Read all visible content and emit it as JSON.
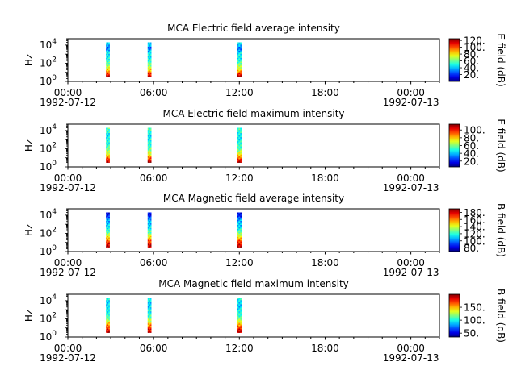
{
  "chart_data": [
    {
      "type": "heatmap",
      "title": "MCA  Electric field average intensity",
      "ylabel": "Hz",
      "yscale": "log",
      "ylim": [
        1,
        50000
      ],
      "y_ticks": [
        {
          "base": "10",
          "exp": "0"
        },
        {
          "base": "10",
          "exp": "2"
        },
        {
          "base": "10",
          "exp": "4"
        }
      ],
      "xlim": [
        "1992-07-12 00:00",
        "1992-07-13 02:00"
      ],
      "x_ticks": [
        "00:00",
        "06:00",
        "12:00",
        "18:00",
        "00:00"
      ],
      "x_tick_dates": [
        "1992-07-12",
        "",
        "",
        "",
        "1992-07-13"
      ],
      "colorbar": {
        "label": "E field (dB)",
        "range": [
          0,
          125
        ],
        "ticks": [
          "20.",
          "40.",
          "60.",
          "80.",
          "100.",
          "120."
        ],
        "colormap": "jet"
      },
      "data_segments": [
        {
          "start": "1992-07-12 02:40",
          "end": "1992-07-12 02:55",
          "freq_min": 3,
          "freq_max": 20000
        },
        {
          "start": "1992-07-12 05:35",
          "end": "1992-07-12 05:50",
          "freq_min": 3,
          "freq_max": 20000
        },
        {
          "start": "1992-07-12 11:50",
          "end": "1992-07-12 12:10",
          "freq_min": 3,
          "freq_max": 20000
        }
      ]
    },
    {
      "type": "heatmap",
      "title": "MCA  Electric field maximum intensity",
      "ylabel": "Hz",
      "yscale": "log",
      "ylim": [
        1,
        50000
      ],
      "y_ticks": [
        {
          "base": "10",
          "exp": "0"
        },
        {
          "base": "10",
          "exp": "2"
        },
        {
          "base": "10",
          "exp": "4"
        }
      ],
      "xlim": [
        "1992-07-12 00:00",
        "1992-07-13 02:00"
      ],
      "x_ticks": [
        "00:00",
        "06:00",
        "12:00",
        "18:00",
        "00:00"
      ],
      "x_tick_dates": [
        "1992-07-12",
        "",
        "",
        "",
        "1992-07-13"
      ],
      "colorbar": {
        "label": "E field (dB)",
        "range": [
          5,
          115
        ],
        "ticks": [
          "20.",
          "40.",
          "60.",
          "80.",
          "100."
        ],
        "colormap": "jet"
      },
      "data_segments": [
        {
          "start": "1992-07-12 02:40",
          "end": "1992-07-12 02:55",
          "freq_min": 3,
          "freq_max": 20000
        },
        {
          "start": "1992-07-12 05:35",
          "end": "1992-07-12 05:50",
          "freq_min": 3,
          "freq_max": 20000
        },
        {
          "start": "1992-07-12 11:50",
          "end": "1992-07-12 12:10",
          "freq_min": 3,
          "freq_max": 20000
        }
      ]
    },
    {
      "type": "heatmap",
      "title": "MCA  Magnetic field average intensity",
      "ylabel": "Hz",
      "yscale": "log",
      "ylim": [
        1,
        50000
      ],
      "y_ticks": [
        {
          "base": "10",
          "exp": "0"
        },
        {
          "base": "10",
          "exp": "2"
        },
        {
          "base": "10",
          "exp": "4"
        }
      ],
      "xlim": [
        "1992-07-12 00:00",
        "1992-07-13 02:00"
      ],
      "x_ticks": [
        "00:00",
        "06:00",
        "12:00",
        "18:00",
        "00:00"
      ],
      "x_tick_dates": [
        "1992-07-12",
        "",
        "",
        "",
        "1992-07-13"
      ],
      "colorbar": {
        "label": "B field (dB)",
        "range": [
          70,
          190
        ],
        "ticks": [
          "80.",
          "100.",
          "120.",
          "140.",
          "160.",
          "180."
        ],
        "colormap": "jet"
      },
      "data_segments": [
        {
          "start": "1992-07-12 02:40",
          "end": "1992-07-12 02:55",
          "freq_min": 3,
          "freq_max": 20000
        },
        {
          "start": "1992-07-12 05:35",
          "end": "1992-07-12 05:50",
          "freq_min": 3,
          "freq_max": 20000
        },
        {
          "start": "1992-07-12 11:50",
          "end": "1992-07-12 12:10",
          "freq_min": 3,
          "freq_max": 20000
        }
      ]
    },
    {
      "type": "heatmap",
      "title": "MCA  Magnetic field maximum intensity",
      "ylabel": "Hz",
      "yscale": "log",
      "ylim": [
        1,
        50000
      ],
      "y_ticks": [
        {
          "base": "10",
          "exp": "0"
        },
        {
          "base": "10",
          "exp": "2"
        },
        {
          "base": "10",
          "exp": "4"
        }
      ],
      "xlim": [
        "1992-07-12 00:00",
        "1992-07-13 02:00"
      ],
      "x_ticks": [
        "00:00",
        "06:00",
        "12:00",
        "18:00",
        "00:00"
      ],
      "x_tick_dates": [
        "1992-07-12",
        "",
        "",
        "",
        "1992-07-13"
      ],
      "colorbar": {
        "label": "B field (dB)",
        "range": [
          35,
          200
        ],
        "ticks": [
          "50.",
          "100.",
          "150."
        ],
        "colormap": "jet"
      },
      "data_segments": [
        {
          "start": "1992-07-12 02:40",
          "end": "1992-07-12 02:55",
          "freq_min": 3,
          "freq_max": 20000
        },
        {
          "start": "1992-07-12 05:35",
          "end": "1992-07-12 05:50",
          "freq_min": 3,
          "freq_max": 20000
        },
        {
          "start": "1992-07-12 11:50",
          "end": "1992-07-12 12:10",
          "freq_min": 3,
          "freq_max": 20000
        }
      ]
    }
  ]
}
